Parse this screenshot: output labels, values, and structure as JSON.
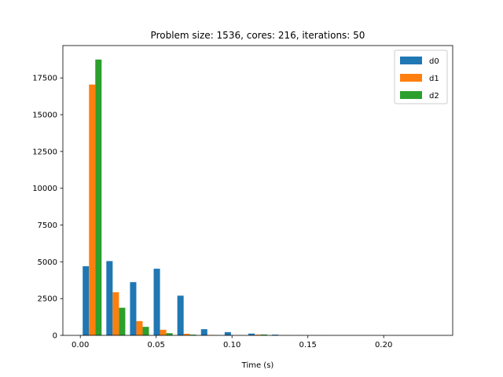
{
  "chart_data": {
    "type": "bar",
    "title": "Problem size: 1536, cores: 216, iterations: 50",
    "xlabel": "Time (s)",
    "ylabel": "",
    "xlim": [
      -0.0115,
      0.2455
    ],
    "ylim": [
      0,
      19700
    ],
    "x_ticks": [
      0.0,
      0.05,
      0.1,
      0.15,
      0.2
    ],
    "x_tick_labels": [
      "0.00",
      "0.05",
      "0.10",
      "0.15",
      "0.20"
    ],
    "y_ticks": [
      0,
      2500,
      5000,
      7500,
      10000,
      12500,
      15000,
      17500
    ],
    "y_tick_labels": [
      "0",
      "2500",
      "5000",
      "7500",
      "10000",
      "12500",
      "15000",
      "17500"
    ],
    "bin_edges": [
      0.0,
      0.0156,
      0.0312,
      0.0468,
      0.0624,
      0.078,
      0.0936,
      0.1092,
      0.1248,
      0.1404,
      0.156,
      0.1716,
      0.1872,
      0.2028,
      0.2184,
      0.234
    ],
    "legend_position": "top-right",
    "series": [
      {
        "name": "d0",
        "color": "#1f77b4",
        "values": [
          4700,
          5050,
          3620,
          4530,
          2700,
          420,
          220,
          120,
          50,
          10,
          5,
          3,
          2,
          1,
          1
        ]
      },
      {
        "name": "d1",
        "color": "#ff7f0e",
        "values": [
          17050,
          2930,
          970,
          380,
          110,
          30,
          15,
          50,
          10,
          5,
          3,
          2,
          1,
          1,
          0
        ]
      },
      {
        "name": "d2",
        "color": "#2ca02c",
        "values": [
          18750,
          1880,
          580,
          150,
          50,
          20,
          15,
          60,
          10,
          5,
          3,
          2,
          1,
          1,
          0
        ]
      }
    ]
  }
}
